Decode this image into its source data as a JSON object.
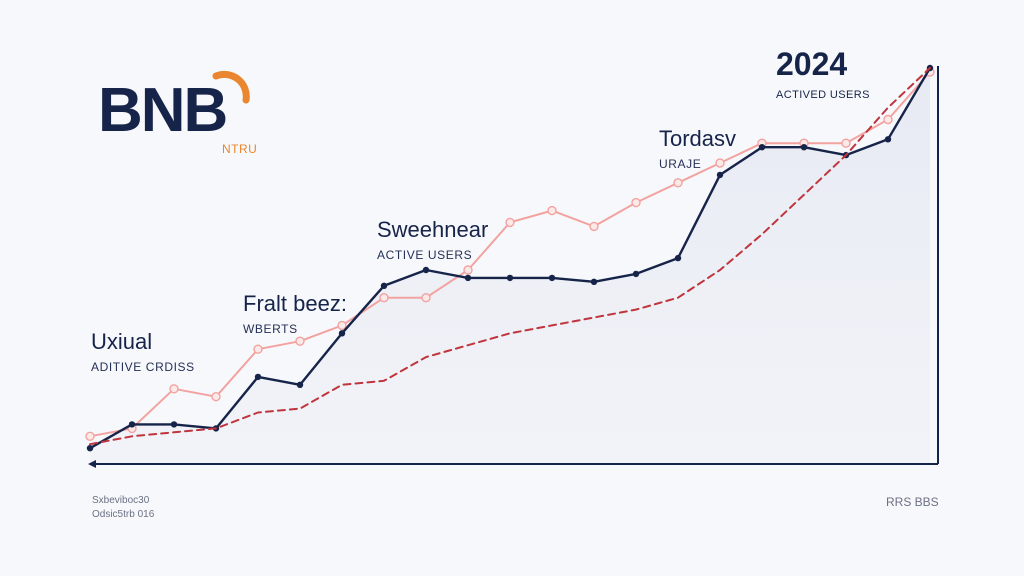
{
  "logo": {
    "text": "BNB",
    "sub": "NTRU",
    "accent_color": "#e9862f",
    "text_color": "#17244a"
  },
  "annotations": [
    {
      "title": "Uxiual",
      "subtitle": "ADITIVE CRDISS"
    },
    {
      "title": "Fralt beez:",
      "subtitle": "WBERTS"
    },
    {
      "title": "Sweehnear",
      "subtitle": "ACTIVE USERS"
    },
    {
      "title": "Tordasv",
      "subtitle": "URAJE"
    }
  ],
  "year_label": {
    "title": "2024",
    "subtitle": "ACTIVED USERS"
  },
  "footer": {
    "left_line1": "Sxbeviboc30",
    "left_line2": "Odsic5trb 016",
    "right": "RRS BBS"
  },
  "chart_data": {
    "type": "line",
    "grid": false,
    "x": [
      0,
      1,
      2,
      3,
      4,
      5,
      6,
      7,
      8,
      9,
      10,
      11,
      12,
      13,
      14,
      15,
      16,
      17,
      18,
      19,
      20
    ],
    "ylim": [
      0,
      100
    ],
    "series": [
      {
        "color": "#f2a3a0",
        "style": "solid-markers",
        "values": [
          7,
          9,
          19,
          17,
          29,
          31,
          35,
          42,
          42,
          49,
          61,
          64,
          60,
          66,
          71,
          76,
          81,
          81,
          81,
          87,
          99
        ]
      },
      {
        "color": "#17244a",
        "style": "solid-fill",
        "values": [
          4,
          10,
          10,
          9,
          22,
          20,
          33,
          45,
          49,
          47,
          47,
          47,
          46,
          48,
          52,
          73,
          80,
          80,
          78,
          82,
          100
        ]
      },
      {
        "color": "#c0353d",
        "style": "dashed",
        "values": [
          5,
          7,
          8,
          9,
          13,
          14,
          20,
          21,
          27,
          30,
          33,
          35,
          37,
          39,
          42,
          49,
          58,
          68,
          78,
          90,
          100
        ]
      }
    ]
  }
}
